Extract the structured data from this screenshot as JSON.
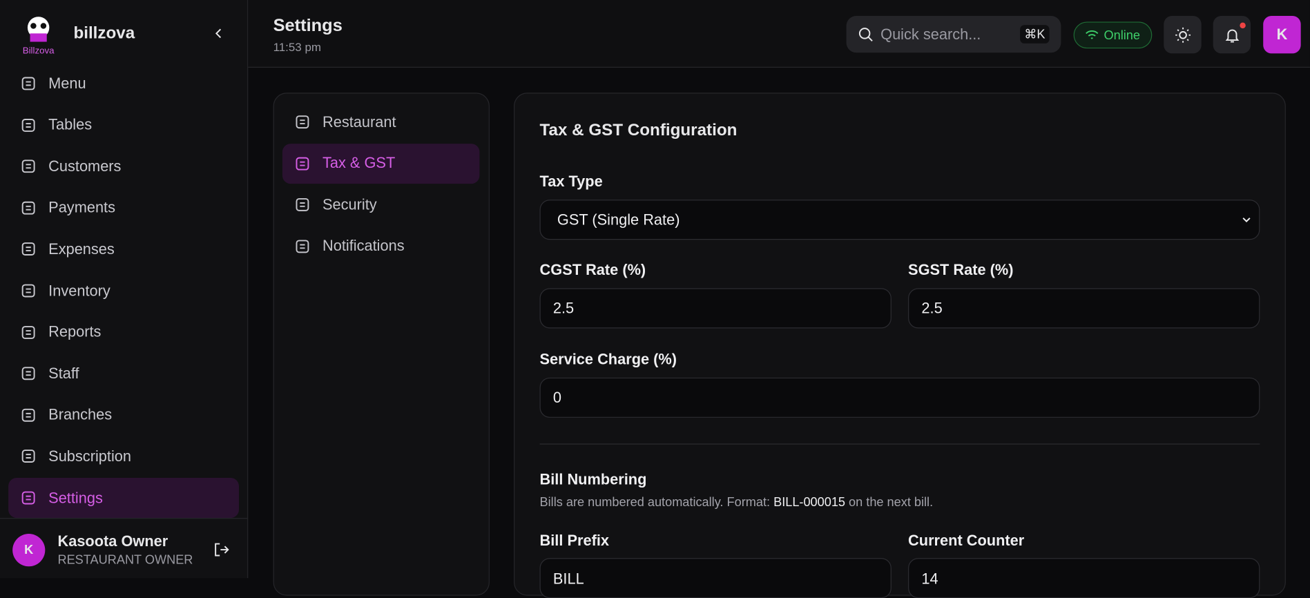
{
  "brand": {
    "logo_text": "Billzova",
    "name": "billzova"
  },
  "sidebar": {
    "items": [
      "Menu",
      "Tables",
      "Customers",
      "Payments",
      "Expenses",
      "Inventory",
      "Reports",
      "Staff",
      "Branches",
      "Subscription",
      "Settings"
    ],
    "active": "Settings"
  },
  "user": {
    "initial": "K",
    "name": "Kasoota Owner",
    "role": "RESTAURANT OWNER"
  },
  "header": {
    "title": "Settings",
    "time": "11:53 pm",
    "search_placeholder": "Quick search...",
    "shortcut": "⌘K",
    "status": "Online",
    "avatar": "K"
  },
  "settings_nav": {
    "items": [
      "Restaurant",
      "Tax & GST",
      "Security",
      "Notifications"
    ],
    "active": "Tax & GST"
  },
  "form": {
    "title": "Tax & GST Configuration",
    "tax_type": {
      "label": "Tax Type",
      "value": "GST (Single Rate)"
    },
    "cgst": {
      "label": "CGST Rate (%)",
      "value": "2.5"
    },
    "sgst": {
      "label": "SGST Rate (%)",
      "value": "2.5"
    },
    "service_charge": {
      "label": "Service Charge (%)",
      "value": "0"
    },
    "bill_numbering": {
      "title": "Bill Numbering",
      "note_before": "Bills are numbered automatically. Format:",
      "note_format": "BILL-000015",
      "note_after": "on the next bill."
    },
    "bill_prefix": {
      "label": "Bill Prefix",
      "value": "BILL"
    },
    "current_counter": {
      "label": "Current Counter",
      "value": "14"
    }
  }
}
